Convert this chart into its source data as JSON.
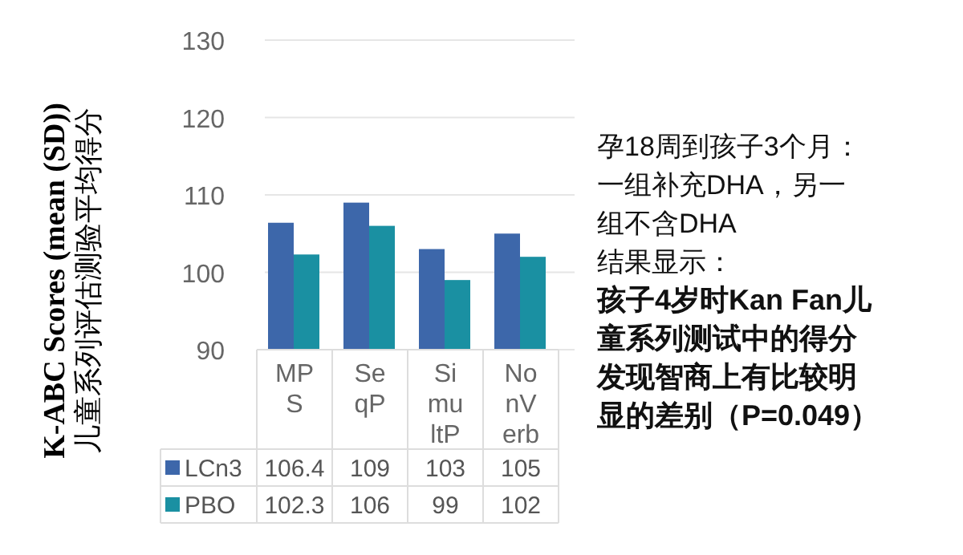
{
  "chart_data": {
    "type": "bar",
    "ylabel": "K-ABC Scores (mean (SD))\n儿童系列评估测验平均得分",
    "categories": [
      "MPS",
      "SeqP",
      "SimultP",
      "NonVerb"
    ],
    "series": [
      {
        "name": "LCn3",
        "color": "#3d67aa",
        "values": [
          106.4,
          109,
          103,
          105
        ]
      },
      {
        "name": "PBO",
        "color": "#1a90a2",
        "values": [
          102.3,
          106,
          99,
          102
        ]
      }
    ],
    "ylim": [
      90,
      130
    ],
    "yticks": [
      90,
      100,
      110,
      120,
      130
    ],
    "grid": "y",
    "data_labels": true,
    "legend": "bottom",
    "annotations": [
      "孕18周到孩子3个月：一组补充DHA，另一组不含DHA",
      "结果显示：",
      "孩子4岁时Kan Fan儿童系列测试中的得分发现智商上有比较明显的差别（P=0.049）"
    ]
  }
}
